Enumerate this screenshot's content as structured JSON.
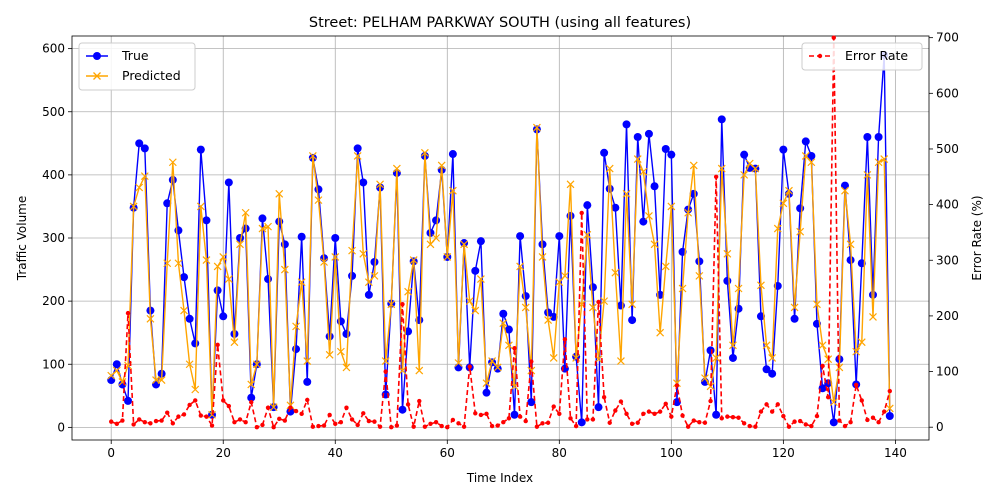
{
  "chart_data": {
    "type": "line",
    "title": "Street: PELHAM PARKWAY SOUTH (using all features)",
    "xlabel": "Time Index",
    "ylabel": "Traffic Volume",
    "y2label": "Error Rate (%)",
    "xlim": [
      -7,
      146
    ],
    "ylim": [
      -20,
      620
    ],
    "y2lim": [
      -23,
      703
    ],
    "xticks": [
      0,
      20,
      40,
      60,
      80,
      100,
      120,
      140
    ],
    "yticks": [
      0,
      100,
      200,
      300,
      400,
      500,
      600
    ],
    "y2ticks": [
      0,
      100,
      200,
      300,
      400,
      500,
      600,
      700
    ],
    "grid": true,
    "legend_left": [
      "True",
      "Predicted"
    ],
    "legend_right": [
      "Error Rate"
    ],
    "colors": {
      "true": "#0000ff",
      "predicted": "#ffa500",
      "error": "#ff0000"
    },
    "x_start": 0,
    "series": [
      {
        "name": "True",
        "values": [
          75,
          100,
          68,
          42,
          348,
          450,
          442,
          185,
          68,
          85,
          355,
          392,
          312,
          238,
          172,
          133,
          440,
          328,
          20,
          217,
          176,
          388,
          148,
          300,
          315,
          47,
          100,
          331,
          235,
          32,
          326,
          290,
          25,
          124,
          302,
          72,
          427,
          377,
          268,
          144,
          300,
          168,
          148,
          240,
          442,
          388,
          210,
          262,
          380,
          52,
          196,
          403,
          28,
          152,
          263,
          170,
          430,
          308,
          328,
          408,
          270,
          433,
          95,
          292,
          95,
          248,
          295,
          55,
          103,
          93,
          180,
          155,
          20,
          303,
          208,
          40,
          472,
          290,
          182,
          175,
          303,
          93,
          335,
          112,
          8,
          352,
          222,
          32,
          435,
          378,
          348,
          193,
          480,
          170,
          460,
          326,
          465,
          382,
          210,
          441,
          432,
          40,
          278,
          345,
          370,
          263,
          72,
          122,
          20,
          488,
          232,
          110,
          188,
          432,
          411,
          410,
          176,
          92,
          85,
          224,
          440,
          370,
          172,
          347,
          453,
          430,
          164,
          62,
          70,
          8,
          108,
          383,
          265,
          68,
          260,
          460,
          210,
          460,
          590,
          18
        ]
      },
      {
        "name": "Predicted",
        "values": [
          82,
          90,
          72,
          98,
          350,
          380,
          398,
          172,
          75,
          75,
          260,
          420,
          260,
          185,
          100,
          60,
          350,
          265,
          20,
          255,
          270,
          235,
          135,
          290,
          340,
          68,
          100,
          315,
          318,
          32,
          370,
          250,
          35,
          160,
          230,
          105,
          430,
          360,
          262,
          115,
          270,
          120,
          95,
          280,
          430,
          275,
          230,
          240,
          385,
          105,
          195,
          410,
          90,
          215,
          265,
          90,
          435,
          290,
          300,
          415,
          270,
          375,
          102,
          290,
          200,
          185,
          235,
          70,
          105,
          95,
          165,
          130,
          65,
          255,
          190,
          90,
          475,
          270,
          170,
          110,
          230,
          240,
          385,
          110,
          195,
          305,
          190,
          108,
          200,
          410,
          245,
          105,
          370,
          195,
          425,
          405,
          335,
          290,
          150,
          255,
          350,
          70,
          220,
          340,
          415,
          240,
          78,
          65,
          110,
          410,
          275,
          130,
          220,
          400,
          418,
          410,
          225,
          130,
          110,
          315,
          355,
          375,
          190,
          310,
          430,
          420,
          195,
          130,
          108,
          40,
          95,
          375,
          290,
          120,
          135,
          400,
          175,
          420,
          425,
          30
        ]
      },
      {
        "name": "Error Rate",
        "values": [
          10,
          6,
          12,
          205,
          5,
          14,
          9,
          7,
          11,
          12,
          26,
          7,
          19,
          23,
          40,
          48,
          21,
          19,
          3,
          148,
          48,
          38,
          9,
          14,
          9,
          45,
          0,
          4,
          35,
          0,
          15,
          12,
          35,
          29,
          24,
          49,
          1,
          2,
          3,
          22,
          6,
          9,
          35,
          14,
          4,
          25,
          11,
          10,
          1,
          100,
          0,
          3,
          221,
          41,
          1,
          47,
          1,
          6,
          9,
          2,
          0,
          13,
          7,
          1,
          109,
          25,
          22,
          24,
          2,
          3,
          9,
          16,
          142,
          19,
          11,
          118,
          1,
          7,
          8,
          37,
          24,
          158,
          16,
          2,
          385,
          14,
          14,
          225,
          54,
          8,
          30,
          46,
          24,
          6,
          8,
          24,
          28,
          24,
          28,
          42,
          19,
          75,
          21,
          1,
          12,
          9,
          8,
          47,
          450,
          16,
          19,
          18,
          17,
          7,
          2,
          1,
          28,
          41,
          28,
          41,
          20,
          1,
          10,
          11,
          5,
          2,
          20,
          110,
          54,
          700,
          12,
          2,
          9,
          76,
          48,
          13,
          17,
          9,
          28,
          65
        ]
      }
    ]
  }
}
